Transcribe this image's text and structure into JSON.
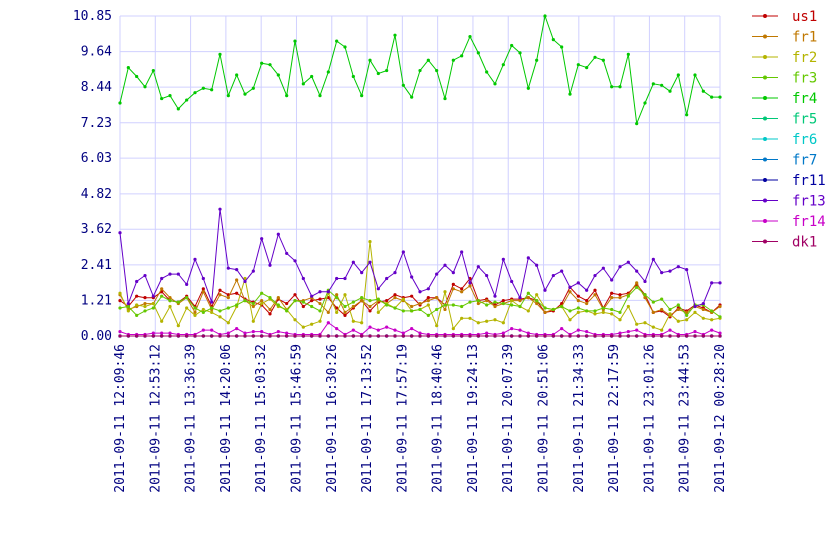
{
  "chart_data": {
    "type": "line",
    "ylim": [
      0,
      10.85
    ],
    "y_ticks": [
      0.0,
      1.21,
      2.41,
      3.62,
      4.82,
      6.03,
      7.23,
      8.44,
      9.64,
      10.85
    ],
    "y_tick_labels": [
      "0.00",
      "1.21",
      "2.41",
      "3.62",
      "4.82",
      "6.03",
      "7.23",
      "8.44",
      "9.64",
      "10.85"
    ],
    "x_tick_labels": [
      "2011-09-11 12:09:46",
      "2011-09-11 12:53:12",
      "2011-09-11 13:36:39",
      "2011-09-11 14:20:06",
      "2011-09-11 15:03:32",
      "2011-09-11 15:46:59",
      "2011-09-11 16:30:26",
      "2011-09-11 17:13:52",
      "2011-09-11 17:57:19",
      "2011-09-11 18:40:46",
      "2011-09-11 19:24:13",
      "2011-09-11 20:07:39",
      "2011-09-11 20:51:06",
      "2011-09-11 21:34:33",
      "2011-09-11 22:17:59",
      "2011-09-11 23:01:26",
      "2011-09-11 23:44:53",
      "2011-09-12 00:28:20"
    ],
    "grid": true,
    "legend_position": "right",
    "series": [
      {
        "name": "us1",
        "color": "#c00000",
        "values": [
          1.2,
          1.0,
          1.35,
          1.3,
          1.3,
          1.5,
          1.2,
          1.15,
          1.35,
          1.0,
          1.6,
          1.0,
          1.55,
          1.4,
          1.45,
          1.25,
          1.15,
          1.05,
          0.75,
          1.25,
          1.1,
          1.4,
          1.0,
          1.2,
          1.25,
          1.3,
          0.95,
          0.7,
          0.95,
          1.2,
          0.85,
          1.15,
          1.2,
          1.4,
          1.3,
          1.35,
          1.05,
          1.3,
          1.3,
          1.05,
          1.75,
          1.6,
          1.95,
          1.2,
          1.25,
          1.05,
          1.2,
          1.25,
          1.25,
          1.3,
          1.2,
          0.8,
          0.85,
          1.1,
          1.65,
          1.35,
          1.2,
          1.55,
          0.95,
          1.45,
          1.4,
          1.45,
          1.75,
          1.4,
          0.8,
          0.85,
          0.65,
          0.95,
          0.85,
          1.05,
          0.95,
          0.8,
          1.05
        ]
      },
      {
        "name": "fr1",
        "color": "#c07800",
        "values": [
          1.4,
          0.9,
          1.0,
          1.1,
          1.1,
          1.6,
          1.3,
          1.1,
          1.3,
          0.8,
          1.5,
          0.9,
          1.4,
          1.3,
          1.9,
          1.2,
          1.0,
          1.2,
          0.9,
          1.3,
          0.9,
          1.2,
          1.2,
          1.3,
          1.1,
          0.8,
          1.4,
          0.8,
          1.0,
          1.2,
          1.0,
          1.2,
          1.1,
          1.3,
          1.2,
          1.0,
          1.1,
          1.2,
          1.3,
          0.9,
          1.6,
          1.5,
          1.7,
          1.1,
          1.2,
          1.0,
          1.1,
          1.2,
          1.2,
          1.3,
          1.1,
          0.8,
          0.9,
          1.0,
          1.5,
          1.2,
          1.1,
          1.4,
          0.9,
          1.3,
          1.3,
          1.4,
          1.8,
          1.3,
          0.8,
          0.9,
          0.7,
          0.9,
          0.8,
          1.0,
          0.9,
          0.8,
          1.0
        ]
      },
      {
        "name": "fr2",
        "color": "#b4b400",
        "values": [
          1.45,
          0.85,
          1.05,
          1.0,
          1.1,
          0.5,
          1.0,
          0.35,
          0.95,
          0.7,
          0.9,
          0.8,
          0.65,
          0.45,
          1.0,
          1.95,
          0.5,
          1.1,
          1.25,
          1.0,
          0.9,
          0.55,
          0.3,
          0.4,
          0.5,
          1.45,
          0.8,
          1.4,
          0.5,
          0.45,
          3.2,
          0.8,
          1.1,
          0.95,
          1.25,
          0.85,
          0.9,
          1.05,
          0.35,
          1.5,
          0.25,
          0.6,
          0.6,
          0.45,
          0.5,
          0.55,
          0.45,
          1.2,
          1.0,
          0.85,
          1.4,
          0.95,
          0.9,
          1.0,
          0.55,
          0.8,
          0.85,
          0.75,
          0.8,
          0.75,
          0.55,
          1.0,
          0.4,
          0.45,
          0.3,
          0.2,
          0.75,
          0.5,
          0.55,
          0.8,
          0.6,
          0.55,
          0.6
        ]
      },
      {
        "name": "fr3",
        "color": "#64c800",
        "values": [
          0.95,
          1.0,
          0.7,
          0.85,
          0.95,
          1.35,
          1.2,
          1.15,
          1.3,
          0.95,
          0.8,
          0.95,
          0.85,
          0.95,
          1.05,
          1.2,
          1.1,
          1.45,
          1.3,
          1.05,
          0.85,
          1.2,
          1.15,
          1.0,
          0.85,
          1.55,
          1.3,
          1.0,
          1.15,
          1.3,
          1.2,
          1.25,
          1.05,
          0.95,
          0.85,
          0.85,
          0.9,
          0.7,
          0.9,
          1.05,
          1.05,
          1.0,
          1.15,
          1.2,
          1.05,
          1.15,
          1.1,
          1.05,
          1.0,
          1.45,
          1.2,
          0.95,
          0.9,
          1.0,
          0.85,
          0.95,
          0.85,
          0.85,
          0.95,
          0.9,
          0.8,
          1.35,
          1.65,
          1.4,
          1.15,
          1.25,
          0.9,
          1.05,
          0.7,
          1.05,
          1.05,
          0.85,
          0.65
        ]
      },
      {
        "name": "fr4",
        "color": "#00c800",
        "values": [
          7.9,
          9.1,
          8.8,
          8.45,
          9.0,
          8.05,
          8.15,
          7.7,
          8.0,
          8.25,
          8.4,
          8.35,
          9.55,
          8.15,
          8.85,
          8.2,
          8.4,
          9.25,
          9.2,
          8.85,
          8.15,
          10.0,
          8.55,
          8.8,
          8.15,
          8.95,
          10.0,
          9.8,
          8.8,
          8.15,
          9.35,
          8.9,
          9.0,
          10.2,
          8.5,
          8.1,
          9.0,
          9.35,
          9.0,
          8.05,
          9.35,
          9.5,
          10.15,
          9.6,
          8.95,
          8.55,
          9.2,
          9.85,
          9.6,
          8.4,
          9.35,
          10.85,
          10.05,
          9.8,
          8.2,
          9.2,
          9.1,
          9.45,
          9.35,
          8.45,
          8.45,
          9.55,
          7.2,
          7.9,
          8.55,
          8.5,
          8.3,
          8.85,
          7.5,
          8.85,
          8.3,
          8.1,
          8.1
        ]
      },
      {
        "name": "fr5",
        "color": "#00c878",
        "values": [
          0.0,
          0.0,
          0.0,
          0.0,
          0.0,
          0.0,
          0.0,
          0.0,
          0.0,
          0.0,
          0.0,
          0.0,
          0.0,
          0.0,
          0.0,
          0.0,
          0.0,
          0.0,
          0.0,
          0.0,
          0.0,
          0.0,
          0.0,
          0.0,
          0.0,
          0.0,
          0.0,
          0.0,
          0.0,
          0.0,
          0.0,
          0.0,
          0.0,
          0.0,
          0.0,
          0.0,
          0.0,
          0.0,
          0.0,
          0.0,
          0.0,
          0.0,
          0.0,
          0.0,
          0.0,
          0.0,
          0.0,
          0.0,
          0.0,
          0.0,
          0.0,
          0.0,
          0.0,
          0.0,
          0.0,
          0.0,
          0.0,
          0.0,
          0.0,
          0.0,
          0.0,
          0.0,
          0.0,
          0.0,
          0.0,
          0.0,
          0.0,
          0.0,
          0.0,
          0.0,
          0.0,
          0.0,
          0.0
        ]
      },
      {
        "name": "fr6",
        "color": "#00c8c8",
        "values": [
          0.0,
          0.0,
          0.0,
          0.0,
          0.0,
          0.0,
          0.0,
          0.0,
          0.0,
          0.0,
          0.0,
          0.0,
          0.0,
          0.0,
          0.0,
          0.0,
          0.0,
          0.0,
          0.0,
          0.0,
          0.0,
          0.0,
          0.0,
          0.0,
          0.0,
          0.0,
          0.0,
          0.0,
          0.0,
          0.0,
          0.0,
          0.0,
          0.0,
          0.0,
          0.0,
          0.0,
          0.0,
          0.0,
          0.0,
          0.0,
          0.0,
          0.0,
          0.0,
          0.0,
          0.0,
          0.0,
          0.0,
          0.0,
          0.0,
          0.0,
          0.0,
          0.0,
          0.0,
          0.0,
          0.0,
          0.0,
          0.0,
          0.0,
          0.0,
          0.0,
          0.0,
          0.0,
          0.0,
          0.0,
          0.0,
          0.0,
          0.0,
          0.0,
          0.0,
          0.0,
          0.0,
          0.0,
          0.0
        ]
      },
      {
        "name": "fr7",
        "color": "#0078c8",
        "values": [
          0.0,
          0.0,
          0.0,
          0.0,
          0.0,
          0.0,
          0.0,
          0.0,
          0.0,
          0.0,
          0.0,
          0.0,
          0.0,
          0.0,
          0.0,
          0.0,
          0.0,
          0.0,
          0.0,
          0.0,
          0.0,
          0.0,
          0.0,
          0.0,
          0.0,
          0.0,
          0.0,
          0.0,
          0.0,
          0.0,
          0.0,
          0.0,
          0.0,
          0.0,
          0.0,
          0.0,
          0.0,
          0.0,
          0.0,
          0.0,
          0.0,
          0.0,
          0.0,
          0.0,
          0.0,
          0.0,
          0.0,
          0.0,
          0.0,
          0.0,
          0.0,
          0.0,
          0.0,
          0.0,
          0.0,
          0.0,
          0.0,
          0.0,
          0.0,
          0.0,
          0.0,
          0.0,
          0.0,
          0.0,
          0.0,
          0.0,
          0.0,
          0.0,
          0.0,
          0.0,
          0.0,
          0.0,
          0.0
        ]
      },
      {
        "name": "fr11",
        "color": "#0000a0",
        "values": [
          0.0,
          0.0,
          0.0,
          0.0,
          0.0,
          0.0,
          0.0,
          0.0,
          0.0,
          0.0,
          0.0,
          0.0,
          0.0,
          0.0,
          0.0,
          0.0,
          0.0,
          0.0,
          0.0,
          0.0,
          0.0,
          0.0,
          0.0,
          0.0,
          0.0,
          0.0,
          0.0,
          0.0,
          0.0,
          0.0,
          0.0,
          0.0,
          0.0,
          0.0,
          0.0,
          0.0,
          0.0,
          0.0,
          0.0,
          0.0,
          0.0,
          0.0,
          0.0,
          0.0,
          0.0,
          0.0,
          0.0,
          0.0,
          0.0,
          0.0,
          0.0,
          0.0,
          0.0,
          0.0,
          0.0,
          0.0,
          0.0,
          0.0,
          0.0,
          0.0,
          0.0,
          0.0,
          0.0,
          0.0,
          0.0,
          0.0,
          0.0,
          0.0,
          0.0,
          0.0,
          0.0,
          0.0,
          0.0
        ]
      },
      {
        "name": "fr13",
        "color": "#6400c8",
        "values": [
          3.5,
          1.1,
          1.85,
          2.05,
          1.35,
          1.95,
          2.1,
          2.1,
          1.75,
          2.6,
          1.95,
          1.15,
          4.3,
          2.3,
          2.25,
          1.85,
          2.2,
          3.3,
          2.4,
          3.45,
          2.8,
          2.55,
          1.95,
          1.35,
          1.5,
          1.5,
          1.95,
          1.95,
          2.5,
          2.15,
          2.5,
          1.6,
          1.95,
          2.15,
          2.85,
          2.0,
          1.5,
          1.6,
          2.1,
          2.4,
          2.15,
          2.85,
          1.8,
          2.35,
          2.05,
          1.35,
          2.6,
          1.85,
          1.3,
          2.65,
          2.4,
          1.55,
          2.05,
          2.2,
          1.65,
          1.8,
          1.55,
          2.05,
          2.3,
          1.9,
          2.35,
          2.5,
          2.2,
          1.85,
          2.6,
          2.15,
          2.2,
          2.35,
          2.25,
          1.0,
          1.1,
          1.8,
          1.8
        ]
      },
      {
        "name": "fr14",
        "color": "#c800c8",
        "values": [
          0.15,
          0.05,
          0.05,
          0.05,
          0.1,
          0.1,
          0.1,
          0.05,
          0.05,
          0.05,
          0.2,
          0.2,
          0.05,
          0.1,
          0.25,
          0.1,
          0.15,
          0.15,
          0.05,
          0.15,
          0.1,
          0.05,
          0.05,
          0.05,
          0.05,
          0.45,
          0.25,
          0.05,
          0.2,
          0.05,
          0.3,
          0.2,
          0.3,
          0.2,
          0.1,
          0.25,
          0.1,
          0.05,
          0.05,
          0.05,
          0.05,
          0.05,
          0.05,
          0.05,
          0.1,
          0.05,
          0.1,
          0.25,
          0.2,
          0.1,
          0.05,
          0.05,
          0.05,
          0.25,
          0.05,
          0.2,
          0.15,
          0.05,
          0.05,
          0.05,
          0.1,
          0.15,
          0.2,
          0.05,
          0.05,
          0.05,
          0.2,
          0.05,
          0.05,
          0.15,
          0.05,
          0.2,
          0.1
        ]
      },
      {
        "name": "dk1",
        "color": "#a00064",
        "values": [
          0.0,
          0.0,
          0.0,
          0.0,
          0.0,
          0.0,
          0.0,
          0.0,
          0.0,
          0.0,
          0.0,
          0.0,
          0.0,
          0.0,
          0.0,
          0.0,
          0.0,
          0.0,
          0.0,
          0.0,
          0.0,
          0.0,
          0.0,
          0.0,
          0.0,
          0.0,
          0.0,
          0.0,
          0.0,
          0.0,
          0.0,
          0.0,
          0.0,
          0.0,
          0.0,
          0.0,
          0.0,
          0.0,
          0.0,
          0.0,
          0.0,
          0.0,
          0.0,
          0.0,
          0.0,
          0.0,
          0.0,
          0.0,
          0.0,
          0.0,
          0.0,
          0.0,
          0.0,
          0.0,
          0.0,
          0.0,
          0.0,
          0.0,
          0.0,
          0.0,
          0.0,
          0.0,
          0.0,
          0.0,
          0.0,
          0.0,
          0.0,
          0.0,
          0.0,
          0.0,
          0.0,
          0.0,
          0.0
        ]
      }
    ]
  },
  "colors": {
    "grid": "#d0d0ff",
    "axis_text": "#000080",
    "background": "#ffffff"
  }
}
